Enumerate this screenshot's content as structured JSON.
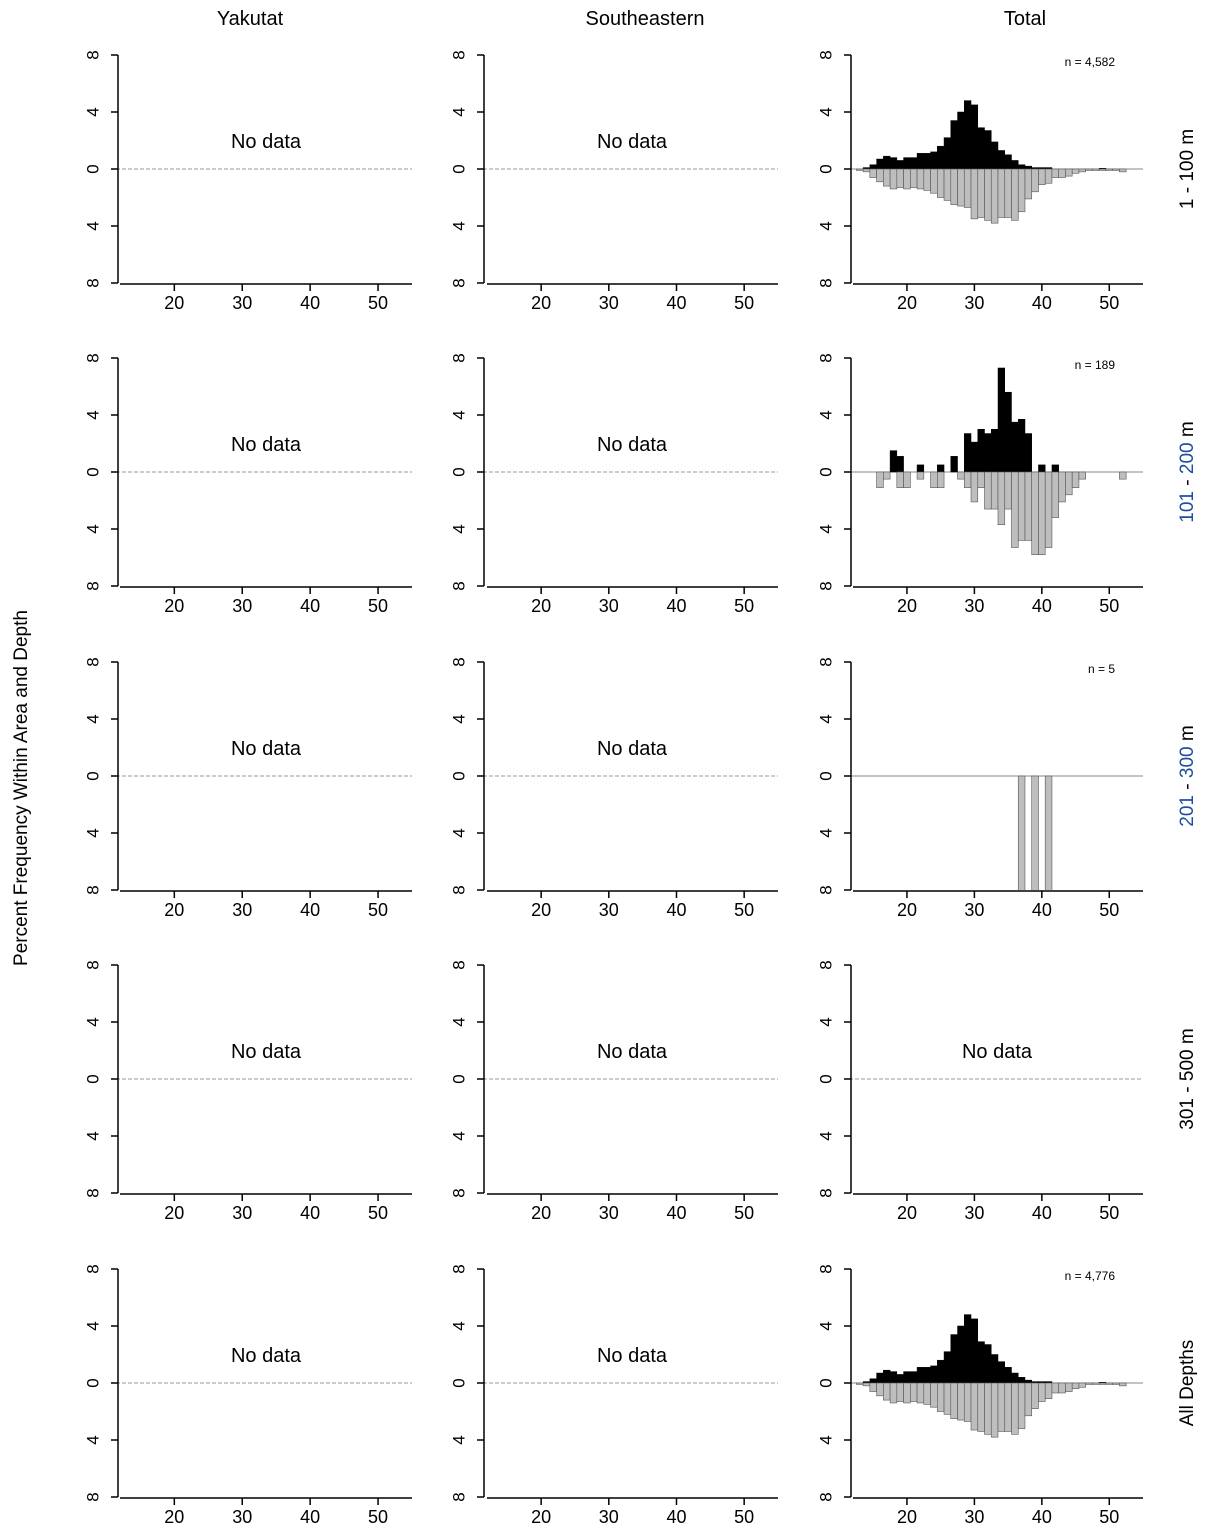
{
  "figure": {
    "ylabel": "Percent Frequency Within Area and Depth",
    "columns": [
      "Yakutat",
      "Southeastern",
      "Total"
    ],
    "no_data_label": "No data",
    "colors": {
      "male": "#000000",
      "female": "#bebebe",
      "axis": "#000000",
      "zero_line": "#999999"
    }
  },
  "chart_data": {
    "type": "bar",
    "description_note": "",
    "x_ticks": [
      20,
      30,
      40,
      50
    ],
    "y_ticks": [
      8,
      4,
      0,
      4,
      8
    ],
    "xlim": [
      12,
      55
    ],
    "ylim": [
      -8,
      8
    ],
    "rows": [
      {
        "label": "1 - 100 m",
        "label_parts": [
          {
            "text": "1 - 100 m",
            "color": "#000000"
          }
        ],
        "panels": [
          {
            "column": "Yakutat",
            "no_data": true
          },
          {
            "column": "Southeastern",
            "no_data": true
          },
          {
            "column": "Total",
            "no_data": false,
            "n_label": "n = 4,582",
            "male": [
              [
                14,
                0.1
              ],
              [
                15,
                0.3
              ],
              [
                16,
                0.7
              ],
              [
                17,
                0.9
              ],
              [
                18,
                0.8
              ],
              [
                19,
                0.6
              ],
              [
                20,
                0.8
              ],
              [
                21,
                0.8
              ],
              [
                22,
                1.1
              ],
              [
                23,
                1.1
              ],
              [
                24,
                1.2
              ],
              [
                25,
                1.6
              ],
              [
                26,
                2.2
              ],
              [
                27,
                3.4
              ],
              [
                28,
                4.0
              ],
              [
                29,
                4.8
              ],
              [
                30,
                4.5
              ],
              [
                31,
                2.9
              ],
              [
                32,
                2.7
              ],
              [
                33,
                1.9
              ],
              [
                34,
                1.3
              ],
              [
                35,
                1.0
              ],
              [
                36,
                0.6
              ],
              [
                37,
                0.3
              ],
              [
                38,
                0.2
              ],
              [
                39,
                0.1
              ],
              [
                40,
                0.1
              ],
              [
                41,
                0.1
              ],
              [
                49,
                0.05
              ]
            ],
            "female": [
              [
                13,
                0.1
              ],
              [
                14,
                0.2
              ],
              [
                15,
                0.6
              ],
              [
                16,
                0.9
              ],
              [
                17,
                1.2
              ],
              [
                18,
                1.4
              ],
              [
                19,
                1.3
              ],
              [
                20,
                1.4
              ],
              [
                21,
                1.3
              ],
              [
                22,
                1.4
              ],
              [
                23,
                1.5
              ],
              [
                24,
                1.7
              ],
              [
                25,
                2.0
              ],
              [
                26,
                2.2
              ],
              [
                27,
                2.5
              ],
              [
                28,
                2.6
              ],
              [
                29,
                2.7
              ],
              [
                30,
                3.5
              ],
              [
                31,
                3.4
              ],
              [
                32,
                3.6
              ],
              [
                33,
                3.8
              ],
              [
                34,
                3.4
              ],
              [
                35,
                3.4
              ],
              [
                36,
                3.6
              ],
              [
                37,
                3.0
              ],
              [
                38,
                2.1
              ],
              [
                39,
                1.6
              ],
              [
                40,
                1.1
              ],
              [
                41,
                1.0
              ],
              [
                42,
                0.6
              ],
              [
                43,
                0.6
              ],
              [
                44,
                0.5
              ],
              [
                45,
                0.3
              ],
              [
                46,
                0.2
              ],
              [
                47,
                0.1
              ],
              [
                48,
                0.1
              ],
              [
                49,
                0.1
              ],
              [
                50,
                0.1
              ],
              [
                51,
                0.1
              ],
              [
                52,
                0.2
              ]
            ]
          }
        ]
      },
      {
        "label": "101 - 200 m",
        "label_parts": [
          {
            "text": "101",
            "color": "#1f4e9e"
          },
          {
            "text": " - ",
            "color": "#000000"
          },
          {
            "text": "200",
            "color": "#1f4e9e"
          },
          {
            "text": " m",
            "color": "#000000"
          }
        ],
        "panels": [
          {
            "column": "Yakutat",
            "no_data": true
          },
          {
            "column": "Southeastern",
            "no_data": true
          },
          {
            "column": "Total",
            "no_data": false,
            "n_label": "n = 189",
            "male": [
              [
                18,
                1.5
              ],
              [
                19,
                1.1
              ],
              [
                22,
                0.5
              ],
              [
                25,
                0.5
              ],
              [
                27,
                1.1
              ],
              [
                29,
                2.7
              ],
              [
                30,
                2.1
              ],
              [
                31,
                3.0
              ],
              [
                32,
                2.7
              ],
              [
                33,
                3.0
              ],
              [
                34,
                7.3
              ],
              [
                35,
                5.6
              ],
              [
                36,
                3.5
              ],
              [
                37,
                3.7
              ],
              [
                38,
                2.7
              ],
              [
                40,
                0.5
              ],
              [
                42,
                0.5
              ]
            ],
            "female": [
              [
                16,
                1.1
              ],
              [
                17,
                0.5
              ],
              [
                19,
                1.1
              ],
              [
                20,
                1.1
              ],
              [
                22,
                0.5
              ],
              [
                24,
                1.1
              ],
              [
                25,
                1.1
              ],
              [
                28,
                0.5
              ],
              [
                29,
                1.1
              ],
              [
                30,
                2.1
              ],
              [
                31,
                1.1
              ],
              [
                32,
                2.6
              ],
              [
                33,
                2.6
              ],
              [
                34,
                3.7
              ],
              [
                35,
                2.6
              ],
              [
                36,
                5.3
              ],
              [
                37,
                4.8
              ],
              [
                38,
                4.8
              ],
              [
                39,
                5.8
              ],
              [
                40,
                5.8
              ],
              [
                41,
                5.3
              ],
              [
                42,
                3.2
              ],
              [
                43,
                2.1
              ],
              [
                44,
                1.6
              ],
              [
                45,
                1.1
              ],
              [
                46,
                0.5
              ],
              [
                52,
                0.5
              ]
            ]
          }
        ]
      },
      {
        "label": "201 - 300 m",
        "label_parts": [
          {
            "text": "201",
            "color": "#1f4e9e"
          },
          {
            "text": " - ",
            "color": "#000000"
          },
          {
            "text": "300",
            "color": "#1f4e9e"
          },
          {
            "text": " m",
            "color": "#000000"
          }
        ],
        "panels": [
          {
            "column": "Yakutat",
            "no_data": true
          },
          {
            "column": "Southeastern",
            "no_data": true
          },
          {
            "column": "Total",
            "no_data": false,
            "n_label": "n = 5",
            "clipped_to_limit": true,
            "male": [],
            "female": [
              [
                37,
                20
              ],
              [
                39,
                20
              ],
              [
                41,
                20
              ]
            ]
          }
        ]
      },
      {
        "label": "301 - 500 m",
        "label_parts": [
          {
            "text": "301 - 500 m",
            "color": "#000000"
          }
        ],
        "panels": [
          {
            "column": "Yakutat",
            "no_data": true
          },
          {
            "column": "Southeastern",
            "no_data": true
          },
          {
            "column": "Total",
            "no_data": true
          }
        ]
      },
      {
        "label": "All Depths",
        "label_parts": [
          {
            "text": "All Depths",
            "color": "#000000"
          }
        ],
        "panels": [
          {
            "column": "Yakutat",
            "no_data": true
          },
          {
            "column": "Southeastern",
            "no_data": true
          },
          {
            "column": "Total",
            "no_data": false,
            "n_label": "n = 4,776",
            "male": [
              [
                14,
                0.1
              ],
              [
                15,
                0.3
              ],
              [
                16,
                0.7
              ],
              [
                17,
                0.9
              ],
              [
                18,
                0.8
              ],
              [
                19,
                0.6
              ],
              [
                20,
                0.8
              ],
              [
                21,
                0.8
              ],
              [
                22,
                1.1
              ],
              [
                23,
                1.1
              ],
              [
                24,
                1.2
              ],
              [
                25,
                1.6
              ],
              [
                26,
                2.2
              ],
              [
                27,
                3.4
              ],
              [
                28,
                4.0
              ],
              [
                29,
                4.8
              ],
              [
                30,
                4.5
              ],
              [
                31,
                2.9
              ],
              [
                32,
                2.7
              ],
              [
                33,
                2.0
              ],
              [
                34,
                1.5
              ],
              [
                35,
                1.1
              ],
              [
                36,
                0.7
              ],
              [
                37,
                0.4
              ],
              [
                38,
                0.2
              ],
              [
                39,
                0.1
              ],
              [
                40,
                0.1
              ],
              [
                41,
                0.1
              ],
              [
                49,
                0.05
              ]
            ],
            "female": [
              [
                13,
                0.1
              ],
              [
                14,
                0.2
              ],
              [
                15,
                0.6
              ],
              [
                16,
                0.9
              ],
              [
                17,
                1.2
              ],
              [
                18,
                1.4
              ],
              [
                19,
                1.3
              ],
              [
                20,
                1.4
              ],
              [
                21,
                1.3
              ],
              [
                22,
                1.4
              ],
              [
                23,
                1.5
              ],
              [
                24,
                1.7
              ],
              [
                25,
                2.0
              ],
              [
                26,
                2.2
              ],
              [
                27,
                2.5
              ],
              [
                28,
                2.6
              ],
              [
                29,
                2.7
              ],
              [
                30,
                3.3
              ],
              [
                31,
                3.4
              ],
              [
                32,
                3.6
              ],
              [
                33,
                3.8
              ],
              [
                34,
                3.4
              ],
              [
                35,
                3.4
              ],
              [
                36,
                3.6
              ],
              [
                37,
                3.2
              ],
              [
                38,
                2.3
              ],
              [
                39,
                1.8
              ],
              [
                40,
                1.3
              ],
              [
                41,
                1.1
              ],
              [
                42,
                0.7
              ],
              [
                43,
                0.7
              ],
              [
                44,
                0.6
              ],
              [
                45,
                0.4
              ],
              [
                46,
                0.3
              ],
              [
                47,
                0.1
              ],
              [
                48,
                0.1
              ],
              [
                49,
                0.1
              ],
              [
                50,
                0.1
              ],
              [
                51,
                0.1
              ],
              [
                52,
                0.2
              ]
            ]
          }
        ]
      }
    ]
  }
}
